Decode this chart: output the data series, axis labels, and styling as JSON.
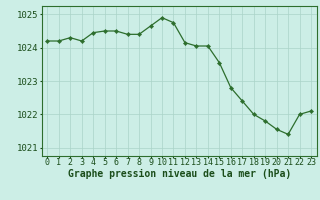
{
  "x": [
    0,
    1,
    2,
    3,
    4,
    5,
    6,
    7,
    8,
    9,
    10,
    11,
    12,
    13,
    14,
    15,
    16,
    17,
    18,
    19,
    20,
    21,
    22,
    23
  ],
  "y": [
    1024.2,
    1024.2,
    1024.3,
    1024.2,
    1024.45,
    1024.5,
    1024.5,
    1024.4,
    1024.4,
    1024.65,
    1024.9,
    1024.75,
    1024.15,
    1024.05,
    1024.05,
    1023.55,
    1022.8,
    1022.4,
    1022.0,
    1021.8,
    1021.55,
    1021.4,
    1022.0,
    1022.1
  ],
  "ylim": [
    1020.75,
    1025.25
  ],
  "yticks": [
    1021,
    1022,
    1023,
    1024,
    1025
  ],
  "xticks": [
    0,
    1,
    2,
    3,
    4,
    5,
    6,
    7,
    8,
    9,
    10,
    11,
    12,
    13,
    14,
    15,
    16,
    17,
    18,
    19,
    20,
    21,
    22,
    23
  ],
  "line_color": "#2d6e2d",
  "marker_color": "#2d6e2d",
  "bg_color": "#cceee6",
  "grid_color": "#aad4c8",
  "xlabel": "Graphe pression niveau de la mer (hPa)",
  "xlabel_color": "#1a4d1a",
  "tick_color": "#1a4d1a",
  "label_fontsize": 7.0,
  "tick_fontsize": 6.0,
  "ytick_fontsize": 6.5
}
